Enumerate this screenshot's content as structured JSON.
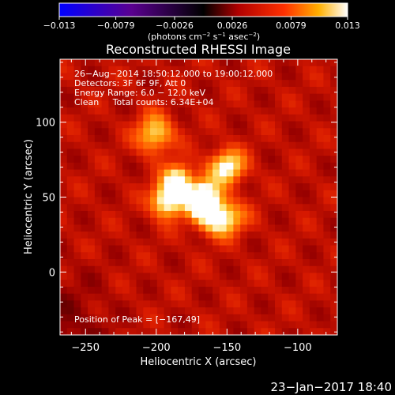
{
  "chart_data": {
    "type": "heatmap",
    "title": "Reconstructed RHESSI Image",
    "xlabel": "Heliocentric X (arcsec)",
    "ylabel": "Heliocentric Y (arcsec)",
    "xlim": [
      -268,
      -72
    ],
    "ylim": [
      -42,
      142
    ],
    "x_ticks": [
      -250,
      -200,
      -150,
      -100
    ],
    "y_ticks": [
      0,
      50,
      100
    ],
    "x_tick_labels": [
      "−250",
      "−200",
      "−150",
      "−100"
    ],
    "y_tick_labels": [
      "0",
      "50",
      "100"
    ],
    "colorbar": {
      "min": -0.013,
      "max": 0.013,
      "ticks": [
        -0.013,
        -0.0079,
        -0.0026,
        0.0026,
        0.0079,
        0.013
      ],
      "tick_labels": [
        "−0.013",
        "−0.0079",
        "−0.0026",
        "0.0026",
        "0.0079",
        "0.013"
      ],
      "units_main": "(photons cm",
      "units_exp1": "−2",
      "units_mid": " s",
      "units_exp2": "−1",
      "units_end": " asec",
      "units_exp3": "−2",
      "units_close": ")"
    },
    "info_lines": [
      "26−Aug−2014 18:50:12.000 to 19:00:12.000",
      "Detectors: 3F 6F 9F, Att 0",
      "Energy Range: 6.0 − 12.0 keV",
      "Clean     Total counts: 6.34E+04"
    ],
    "peak_label": "Position of Peak = [−167,49]",
    "peak": [
      -167,
      49
    ],
    "sources": [
      {
        "x": -167,
        "y": 49,
        "amp": 1.0,
        "sx": 8,
        "sy": 8
      },
      {
        "x": -192,
        "y": 48,
        "amp": 0.85,
        "sx": 8,
        "sy": 8
      },
      {
        "x": -184,
        "y": 62,
        "amp": 0.7,
        "sx": 7,
        "sy": 7
      },
      {
        "x": -155,
        "y": 36,
        "amp": 0.8,
        "sx": 11,
        "sy": 8
      },
      {
        "x": -150,
        "y": 70,
        "amp": 0.7,
        "sx": 9,
        "sy": 8
      },
      {
        "x": -201,
        "y": 92,
        "amp": 0.6,
        "sx": 9,
        "sy": 9
      }
    ],
    "timestamp": "23−Jan−2017 18:40"
  }
}
